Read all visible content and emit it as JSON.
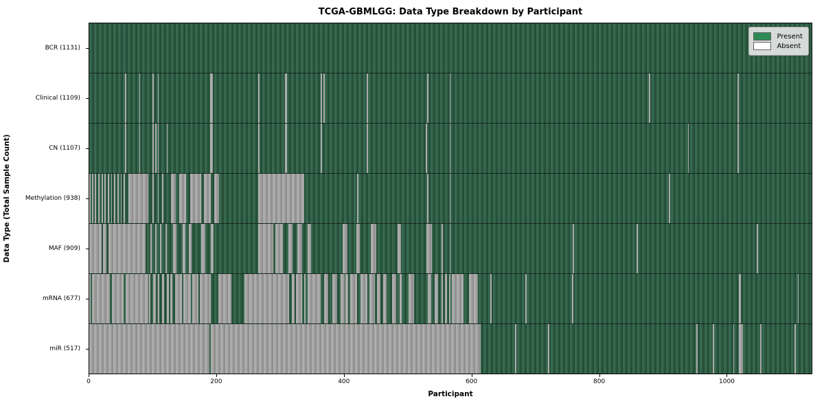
{
  "figure": {
    "title": "TCGA-GBMLGG: Data Type Breakdown by Participant",
    "xlabel": "Participant",
    "ylabel": "Data Type (Total Sample Count)"
  },
  "legend": {
    "items": [
      {
        "label": "Present",
        "color": "#2e8b57"
      },
      {
        "label": "Absent",
        "color": "#ffffff"
      }
    ]
  },
  "chart_data": {
    "type": "heatmap",
    "title": "TCGA-GBMLGG: Data Type Breakdown by Participant",
    "xlabel": "Participant",
    "ylabel": "Data Type (Total Sample Count)",
    "x_ticks": [
      0,
      200,
      400,
      600,
      800,
      1000
    ],
    "x_axis_max": 1134,
    "participant_count": 1131,
    "legend_position": "upper right",
    "present_color": "#2e8b57",
    "absent_color": "#ffffff",
    "rows": [
      {
        "label": "BCR (1131)",
        "name": "BCR",
        "total": 1131,
        "absent": []
      },
      {
        "label": "Clinical (1109)",
        "name": "Clinical",
        "total": 1109,
        "absent": [
          [
            56,
            58
          ],
          [
            78,
            80
          ],
          [
            99,
            101
          ],
          [
            107,
            109
          ],
          [
            189,
            193
          ],
          [
            265,
            267
          ],
          [
            306,
            310
          ],
          [
            362,
            364
          ],
          [
            367,
            369
          ],
          [
            434,
            436
          ],
          [
            529,
            531
          ],
          [
            564,
            566
          ],
          [
            876,
            878
          ],
          [
            1015,
            1017
          ]
        ]
      },
      {
        "label": "CN (1107)",
        "name": "CN",
        "total": 1107,
        "absent": [
          [
            56,
            58
          ],
          [
            78,
            80
          ],
          [
            99,
            101
          ],
          [
            103,
            105
          ],
          [
            107,
            109
          ],
          [
            121,
            123
          ],
          [
            189,
            193
          ],
          [
            265,
            267
          ],
          [
            306,
            310
          ],
          [
            362,
            364
          ],
          [
            434,
            436
          ],
          [
            527,
            529
          ],
          [
            564,
            566
          ],
          [
            937,
            939
          ],
          [
            1015,
            1017
          ]
        ]
      },
      {
        "label": "Methylation (938)",
        "name": "Methylation",
        "total": 938,
        "absent": [
          [
            0,
            2
          ],
          [
            4,
            6
          ],
          [
            9,
            11
          ],
          [
            14,
            16
          ],
          [
            19,
            21
          ],
          [
            24,
            26
          ],
          [
            29,
            31
          ],
          [
            34,
            36
          ],
          [
            39,
            41
          ],
          [
            44,
            46
          ],
          [
            49,
            51
          ],
          [
            54,
            56
          ],
          [
            61,
            93
          ],
          [
            99,
            101
          ],
          [
            107,
            109
          ],
          [
            114,
            116
          ],
          [
            128,
            135
          ],
          [
            141,
            152
          ],
          [
            158,
            175
          ],
          [
            180,
            190
          ],
          [
            196,
            203
          ],
          [
            264,
            336
          ],
          [
            419,
            421
          ],
          [
            529,
            531
          ],
          [
            564,
            566
          ],
          [
            907,
            909
          ]
        ]
      },
      {
        "label": "MAF (909)",
        "name": "MAF",
        "total": 909,
        "absent": [
          [
            0,
            19
          ],
          [
            22,
            27
          ],
          [
            30,
            88
          ],
          [
            96,
            98
          ],
          [
            103,
            105
          ],
          [
            111,
            113
          ],
          [
            119,
            121
          ],
          [
            131,
            137
          ],
          [
            146,
            151
          ],
          [
            156,
            160
          ],
          [
            175,
            182
          ],
          [
            190,
            195
          ],
          [
            264,
            288
          ],
          [
            291,
            303
          ],
          [
            312,
            318
          ],
          [
            326,
            333
          ],
          [
            342,
            347
          ],
          [
            397,
            404
          ],
          [
            418,
            424
          ],
          [
            441,
            449
          ],
          [
            483,
            488
          ],
          [
            528,
            536
          ],
          [
            552,
            554
          ],
          [
            564,
            566
          ],
          [
            757,
            759
          ],
          [
            857,
            859
          ],
          [
            1045,
            1047
          ]
        ]
      },
      {
        "label": "mRNA (677)",
        "name": "mRNA",
        "total": 677,
        "absent": [
          [
            0,
            2
          ],
          [
            4,
            32
          ],
          [
            35,
            54
          ],
          [
            57,
            92
          ],
          [
            93,
            96
          ],
          [
            100,
            104
          ],
          [
            107,
            110
          ],
          [
            114,
            117
          ],
          [
            121,
            125
          ],
          [
            127,
            130
          ],
          [
            134,
            145
          ],
          [
            147,
            159
          ],
          [
            161,
            171
          ],
          [
            173,
            190
          ],
          [
            202,
            223
          ],
          [
            243,
            313
          ],
          [
            317,
            321
          ],
          [
            324,
            333
          ],
          [
            336,
            339
          ],
          [
            342,
            362
          ],
          [
            368,
            374
          ],
          [
            381,
            388
          ],
          [
            394,
            400
          ],
          [
            401,
            405
          ],
          [
            408,
            419
          ],
          [
            425,
            435
          ],
          [
            439,
            447
          ],
          [
            451,
            456
          ],
          [
            460,
            466
          ],
          [
            474,
            481
          ],
          [
            486,
            489
          ],
          [
            500,
            508
          ],
          [
            530,
            535
          ],
          [
            541,
            546
          ],
          [
            552,
            554
          ],
          [
            557,
            560
          ],
          [
            563,
            565
          ],
          [
            568,
            586
          ],
          [
            595,
            609
          ],
          [
            628,
            630
          ],
          [
            683,
            685
          ],
          [
            756,
            758
          ],
          [
            1017,
            1020
          ],
          [
            1109,
            1111
          ]
        ]
      },
      {
        "label": "miR (517)",
        "name": "miR",
        "total": 517,
        "absent": [
          [
            0,
            188
          ],
          [
            190,
            613
          ],
          [
            667,
            669
          ],
          [
            718,
            720
          ],
          [
            950,
            952
          ],
          [
            976,
            978
          ],
          [
            1008,
            1010
          ],
          [
            1017,
            1023
          ],
          [
            1050,
            1052
          ],
          [
            1104,
            1106
          ]
        ]
      }
    ]
  }
}
